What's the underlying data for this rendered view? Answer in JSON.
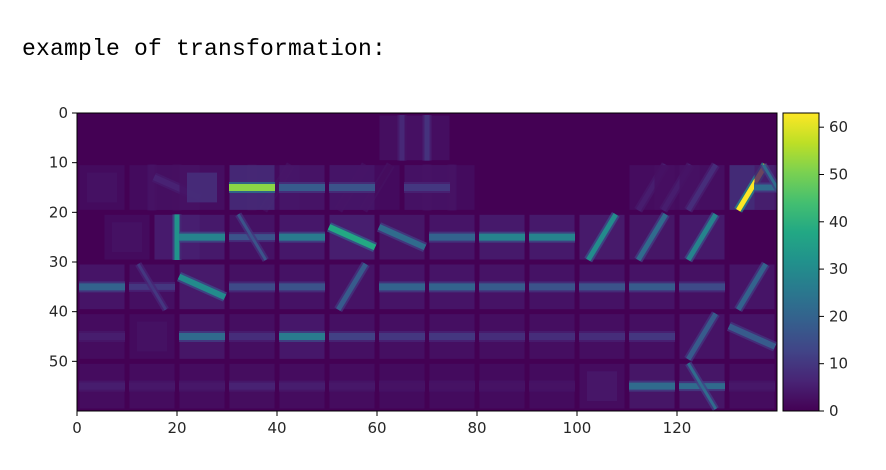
{
  "caption": "example of transformation:",
  "chart_data": {
    "type": "heatmap",
    "colormap": "viridis",
    "grid": false,
    "xlim": [
      0,
      140
    ],
    "ylim": [
      60,
      0
    ],
    "x_ticks": [
      0,
      20,
      40,
      60,
      80,
      100,
      120
    ],
    "y_ticks": [
      0,
      10,
      20,
      30,
      40,
      50
    ],
    "colorbar": {
      "min": 0,
      "max": 63,
      "ticks": [
        0,
        10,
        20,
        30,
        40,
        50,
        60
      ],
      "position": "right"
    },
    "background_value": 1,
    "cell_size": 10,
    "cells": [
      {
        "row": 1,
        "col": 14,
        "shape": "V",
        "v": 3
      },
      {
        "row": 1,
        "col": 3,
        "shape": "V",
        "v": 2
      },
      {
        "row": 1,
        "col": 6,
        "shape": "V",
        "v": 2
      },
      {
        "row": 1,
        "col": 7,
        "shape": "D1",
        "v": 2
      },
      {
        "row": 1,
        "col": 10,
        "shape": "D1",
        "v": 2
      },
      {
        "row": 1,
        "col": 11,
        "shape": "D1",
        "v": 2
      },
      {
        "row": 1,
        "col": 13,
        "shape": "V",
        "v": 3
      },
      {
        "row": 0,
        "col": 12,
        "shape": "V",
        "v": 7
      },
      {
        "row": 0,
        "col": 13,
        "shape": "V",
        "v": 9
      },
      {
        "row": 1,
        "col": 0,
        "shape": "B",
        "v": 3
      },
      {
        "row": 1,
        "col": 2,
        "shape": "V",
        "v": 3
      },
      {
        "row": 1,
        "col": 3,
        "shape": "D2",
        "v": 6
      },
      {
        "row": 1,
        "col": 4,
        "shape": "B",
        "v": 8
      },
      {
        "row": 1,
        "col": 6,
        "shape": "H",
        "v": 52
      },
      {
        "row": 1,
        "col": 8,
        "shape": "H",
        "v": 18
      },
      {
        "row": 1,
        "col": 10,
        "shape": "H",
        "v": 16
      },
      {
        "row": 1,
        "col": 13,
        "shape": "H",
        "v": 10
      },
      {
        "row": 1,
        "col": 22,
        "shape": "D1",
        "v": 5
      },
      {
        "row": 1,
        "col": 23,
        "shape": "D1",
        "v": 5
      },
      {
        "row": 1,
        "col": 24,
        "shape": "D1",
        "v": 8
      },
      {
        "row": 1,
        "col": 26,
        "shape": "D1",
        "v": 63
      },
      {
        "row": 1,
        "col": 27,
        "shape": "X",
        "v": 22
      },
      {
        "row": 2,
        "col": 1,
        "shape": "B",
        "v": 3
      },
      {
        "row": 2,
        "col": 3,
        "shape": "V",
        "v": 32
      },
      {
        "row": 2,
        "col": 4,
        "shape": "H",
        "v": 28
      },
      {
        "row": 2,
        "col": 6,
        "shape": "X",
        "v": 16
      },
      {
        "row": 2,
        "col": 8,
        "shape": "H",
        "v": 26
      },
      {
        "row": 2,
        "col": 10,
        "shape": "D2",
        "v": 38
      },
      {
        "row": 2,
        "col": 12,
        "shape": "D2",
        "v": 22
      },
      {
        "row": 2,
        "col": 14,
        "shape": "H",
        "v": 20
      },
      {
        "row": 2,
        "col": 16,
        "shape": "H",
        "v": 28
      },
      {
        "row": 2,
        "col": 18,
        "shape": "H",
        "v": 28
      },
      {
        "row": 2,
        "col": 20,
        "shape": "D1",
        "v": 30
      },
      {
        "row": 2,
        "col": 22,
        "shape": "D1",
        "v": 22
      },
      {
        "row": 2,
        "col": 24,
        "shape": "D1",
        "v": 28
      },
      {
        "row": 3,
        "col": 0,
        "shape": "H",
        "v": 20
      },
      {
        "row": 3,
        "col": 2,
        "shape": "X",
        "v": 10
      },
      {
        "row": 3,
        "col": 4,
        "shape": "D2",
        "v": 30
      },
      {
        "row": 3,
        "col": 6,
        "shape": "H",
        "v": 14
      },
      {
        "row": 3,
        "col": 8,
        "shape": "H",
        "v": 16
      },
      {
        "row": 3,
        "col": 10,
        "shape": "D1",
        "v": 18
      },
      {
        "row": 3,
        "col": 12,
        "shape": "H",
        "v": 20
      },
      {
        "row": 3,
        "col": 14,
        "shape": "H",
        "v": 20
      },
      {
        "row": 3,
        "col": 16,
        "shape": "H",
        "v": 18
      },
      {
        "row": 3,
        "col": 18,
        "shape": "H",
        "v": 16
      },
      {
        "row": 3,
        "col": 20,
        "shape": "H",
        "v": 16
      },
      {
        "row": 3,
        "col": 22,
        "shape": "H",
        "v": 18
      },
      {
        "row": 3,
        "col": 24,
        "shape": "H",
        "v": 14
      },
      {
        "row": 3,
        "col": 26,
        "shape": "D1",
        "v": 20
      },
      {
        "row": 4,
        "col": 0,
        "shape": "H",
        "v": 5
      },
      {
        "row": 4,
        "col": 2,
        "shape": "B",
        "v": 3
      },
      {
        "row": 4,
        "col": 4,
        "shape": "H",
        "v": 22
      },
      {
        "row": 4,
        "col": 6,
        "shape": "H",
        "v": 8
      },
      {
        "row": 4,
        "col": 8,
        "shape": "H",
        "v": 26
      },
      {
        "row": 4,
        "col": 10,
        "shape": "H",
        "v": 12
      },
      {
        "row": 4,
        "col": 12,
        "shape": "H",
        "v": 10
      },
      {
        "row": 4,
        "col": 14,
        "shape": "H",
        "v": 10
      },
      {
        "row": 4,
        "col": 16,
        "shape": "H",
        "v": 8
      },
      {
        "row": 4,
        "col": 18,
        "shape": "H",
        "v": 8
      },
      {
        "row": 4,
        "col": 20,
        "shape": "H",
        "v": 8
      },
      {
        "row": 4,
        "col": 22,
        "shape": "H",
        "v": 10
      },
      {
        "row": 4,
        "col": 24,
        "shape": "D1",
        "v": 18
      },
      {
        "row": 4,
        "col": 26,
        "shape": "D2",
        "v": 18
      },
      {
        "row": 4,
        "col": 28,
        "shape": "H",
        "v": 4
      },
      {
        "row": 5,
        "col": 0,
        "shape": "H",
        "v": 5
      },
      {
        "row": 5,
        "col": 2,
        "shape": "H",
        "v": 4
      },
      {
        "row": 5,
        "col": 4,
        "shape": "H",
        "v": 4
      },
      {
        "row": 5,
        "col": 6,
        "shape": "H",
        "v": 6
      },
      {
        "row": 5,
        "col": 8,
        "shape": "H",
        "v": 5
      },
      {
        "row": 5,
        "col": 10,
        "shape": "H",
        "v": 4
      },
      {
        "row": 5,
        "col": 12,
        "shape": "H",
        "v": 3
      },
      {
        "row": 5,
        "col": 14,
        "shape": "H",
        "v": 3
      },
      {
        "row": 5,
        "col": 16,
        "shape": "H",
        "v": 3
      },
      {
        "row": 5,
        "col": 18,
        "shape": "H",
        "v": 3
      },
      {
        "row": 5,
        "col": 20,
        "shape": "B",
        "v": 4
      },
      {
        "row": 5,
        "col": 22,
        "shape": "H",
        "v": 22
      },
      {
        "row": 5,
        "col": 24,
        "shape": "X",
        "v": 22
      },
      {
        "row": 5,
        "col": 26,
        "shape": "H",
        "v": 4
      }
    ]
  }
}
